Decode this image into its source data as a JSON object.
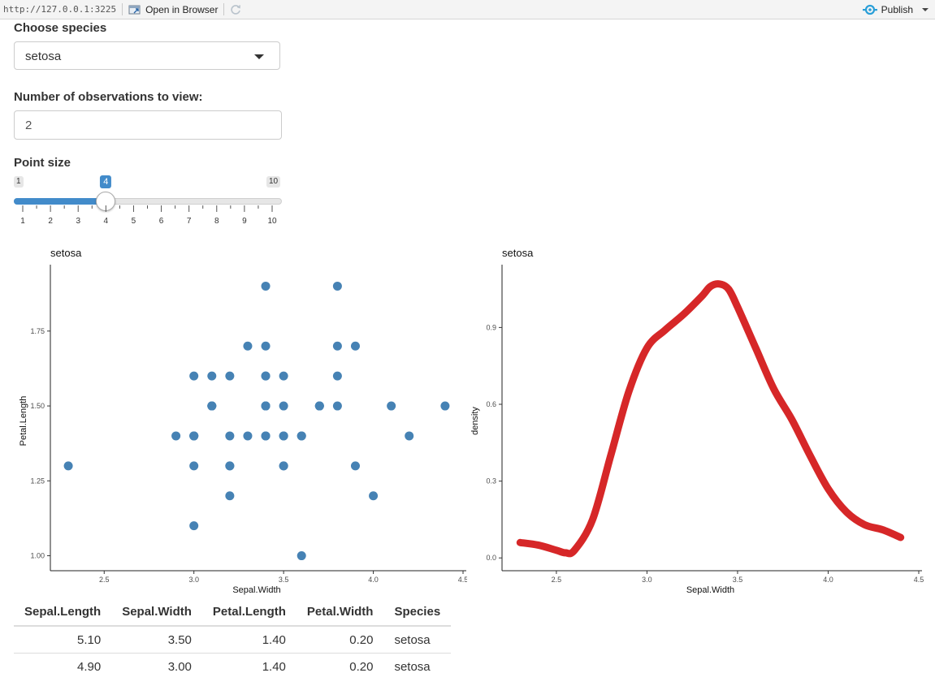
{
  "toolbar": {
    "url": "http://127.0.0.1:3225",
    "open_in_browser": "Open in Browser",
    "publish": "Publish",
    "icons": {
      "open": "open-browser-icon",
      "refresh": "refresh-icon",
      "publish": "publish-icon"
    }
  },
  "controls": {
    "species_label": "Choose species",
    "species_value": "setosa",
    "obs_label": "Number of observations to view:",
    "obs_value": "2",
    "size_label": "Point size",
    "slider": {
      "min": 1,
      "max": 10,
      "value": 4,
      "min_label": "1",
      "max_label": "10",
      "value_label": "4",
      "tick_labels": [
        "1",
        "2",
        "3",
        "4",
        "5",
        "6",
        "7",
        "8",
        "9",
        "10"
      ]
    }
  },
  "accent": "#428bca",
  "scatter_color": "#4682b4",
  "density_color": "#d62728",
  "chart_data": [
    {
      "type": "scatter",
      "title": "setosa",
      "xlabel": "Sepal.Width",
      "ylabel": "Petal.Length",
      "xlim": [
        2.2,
        4.5
      ],
      "ylim": [
        0.95,
        1.95
      ],
      "xticks": [
        2.5,
        3.0,
        3.5,
        4.0,
        4.5
      ],
      "xtick_labels": [
        "2.5",
        "3.0",
        "3.5",
        "4.0",
        "4.5"
      ],
      "yticks": [
        1.0,
        1.25,
        1.5,
        1.75
      ],
      "ytick_labels": [
        "1.00",
        "1.25",
        "1.50",
        "1.75"
      ],
      "grid": false,
      "points": [
        [
          3.5,
          1.4
        ],
        [
          3.0,
          1.4
        ],
        [
          3.2,
          1.3
        ],
        [
          3.1,
          1.5
        ],
        [
          3.6,
          1.4
        ],
        [
          3.9,
          1.7
        ],
        [
          3.4,
          1.4
        ],
        [
          3.4,
          1.5
        ],
        [
          2.9,
          1.4
        ],
        [
          3.1,
          1.5
        ],
        [
          3.7,
          1.5
        ],
        [
          3.4,
          1.6
        ],
        [
          3.0,
          1.4
        ],
        [
          3.0,
          1.1
        ],
        [
          4.0,
          1.2
        ],
        [
          4.4,
          1.5
        ],
        [
          3.9,
          1.3
        ],
        [
          3.5,
          1.4
        ],
        [
          3.8,
          1.7
        ],
        [
          3.8,
          1.5
        ],
        [
          3.4,
          1.7
        ],
        [
          3.7,
          1.5
        ],
        [
          3.6,
          1.0
        ],
        [
          3.3,
          1.7
        ],
        [
          3.4,
          1.9
        ],
        [
          3.0,
          1.6
        ],
        [
          3.4,
          1.6
        ],
        [
          3.5,
          1.5
        ],
        [
          3.4,
          1.4
        ],
        [
          3.2,
          1.6
        ],
        [
          3.1,
          1.6
        ],
        [
          3.4,
          1.5
        ],
        [
          4.1,
          1.5
        ],
        [
          4.2,
          1.4
        ],
        [
          3.1,
          1.5
        ],
        [
          3.2,
          1.2
        ],
        [
          3.5,
          1.3
        ],
        [
          3.6,
          1.4
        ],
        [
          3.0,
          1.3
        ],
        [
          3.4,
          1.5
        ],
        [
          3.5,
          1.3
        ],
        [
          2.3,
          1.3
        ],
        [
          3.2,
          1.3
        ],
        [
          3.5,
          1.6
        ],
        [
          3.8,
          1.9
        ],
        [
          3.0,
          1.4
        ],
        [
          3.8,
          1.6
        ],
        [
          3.2,
          1.4
        ],
        [
          3.7,
          1.5
        ],
        [
          3.3,
          1.4
        ]
      ]
    },
    {
      "type": "line",
      "title": "setosa",
      "xlabel": "Sepal.Width",
      "ylabel": "density",
      "xlim": [
        2.2,
        4.5
      ],
      "ylim": [
        -0.05,
        1.12
      ],
      "xticks": [
        2.5,
        3.0,
        3.5,
        4.0,
        4.5
      ],
      "xtick_labels": [
        "2.5",
        "3.0",
        "3.5",
        "4.0",
        "4.5"
      ],
      "yticks": [
        0.0,
        0.3,
        0.6,
        0.9
      ],
      "ytick_labels": [
        "0.0",
        "0.3",
        "0.6",
        "0.9"
      ],
      "grid": false,
      "x": [
        2.3,
        2.4,
        2.5,
        2.55,
        2.6,
        2.7,
        2.8,
        2.9,
        3.0,
        3.1,
        3.2,
        3.3,
        3.35,
        3.4,
        3.45,
        3.5,
        3.6,
        3.7,
        3.8,
        3.9,
        4.0,
        4.1,
        4.2,
        4.3,
        4.4
      ],
      "y": [
        0.06,
        0.05,
        0.03,
        0.02,
        0.03,
        0.15,
        0.4,
        0.65,
        0.82,
        0.89,
        0.95,
        1.02,
        1.06,
        1.07,
        1.05,
        0.98,
        0.82,
        0.66,
        0.54,
        0.4,
        0.27,
        0.18,
        0.13,
        0.11,
        0.08
      ]
    }
  ],
  "table": {
    "columns": [
      "Sepal.Length",
      "Sepal.Width",
      "Petal.Length",
      "Petal.Width",
      "Species"
    ],
    "rows": [
      [
        "5.10",
        "3.50",
        "1.40",
        "0.20",
        "setosa"
      ],
      [
        "4.90",
        "3.00",
        "1.40",
        "0.20",
        "setosa"
      ]
    ]
  }
}
